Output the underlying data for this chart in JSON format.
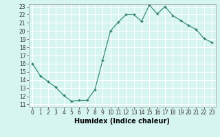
{
  "x": [
    0,
    1,
    2,
    3,
    4,
    5,
    6,
    7,
    8,
    9,
    10,
    11,
    12,
    13,
    14,
    15,
    16,
    17,
    18,
    19,
    20,
    21,
    22,
    23
  ],
  "y": [
    16.0,
    14.5,
    13.8,
    13.1,
    12.1,
    11.4,
    11.5,
    11.5,
    12.8,
    16.4,
    20.0,
    21.1,
    22.0,
    22.0,
    21.2,
    23.2,
    22.1,
    23.0,
    21.9,
    21.3,
    20.7,
    20.2,
    19.1,
    18.6
  ],
  "line_color": "#2d7d6e",
  "marker": "+",
  "marker_size": 3,
  "marker_lw": 1.0,
  "bg_color": "#d6f5f0",
  "grid_color": "#ffffff",
  "xlabel": "Humidex (Indice chaleur)",
  "ylabel_ticks": [
    11,
    12,
    13,
    14,
    15,
    16,
    17,
    18,
    19,
    20,
    21,
    22,
    23
  ],
  "xlabel_ticks": [
    0,
    1,
    2,
    3,
    4,
    5,
    6,
    7,
    8,
    9,
    10,
    11,
    12,
    13,
    14,
    15,
    16,
    17,
    18,
    19,
    20,
    21,
    22,
    23
  ],
  "ylim": [
    10.7,
    23.3
  ],
  "xlim": [
    -0.5,
    23.5
  ],
  "tick_fontsize": 5.5,
  "label_fontsize": 7.0,
  "linewidth": 0.8
}
